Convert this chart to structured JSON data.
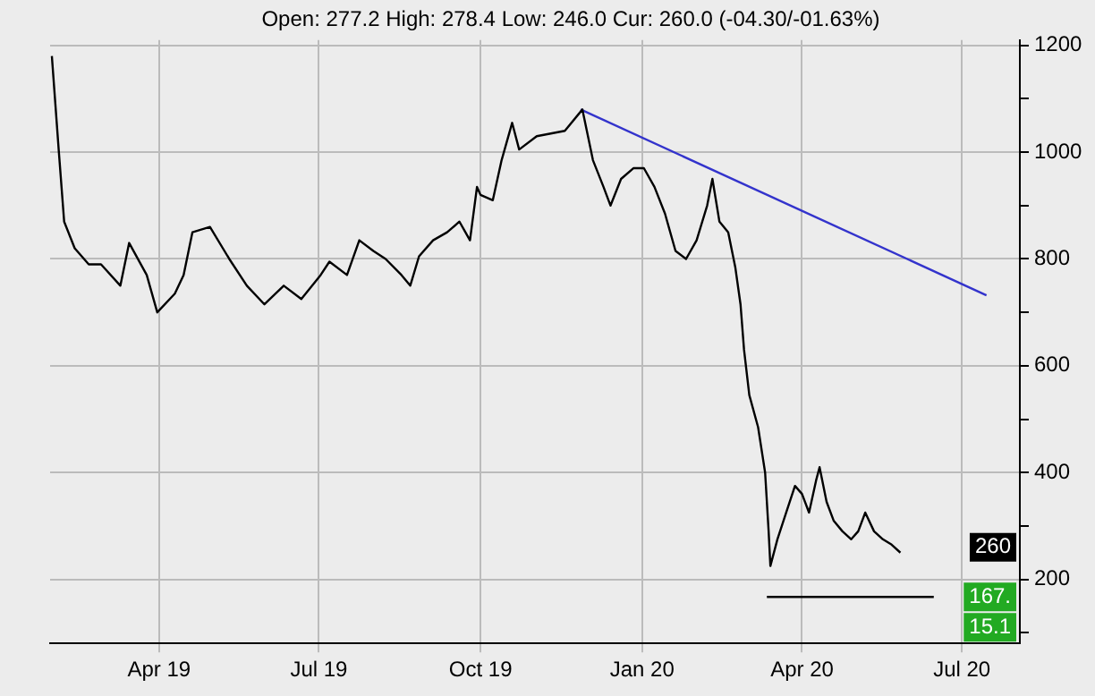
{
  "chart_data": {
    "type": "line",
    "subtitle": "Open: 277.2 High: 278.4 Low: 246.0 Cur: 260.0 (-04.30/-01.63%)",
    "series": [
      {
        "color": "#000000",
        "x": [
          "2019-01-30",
          "2019-02-03",
          "2019-02-06",
          "2019-02-12",
          "2019-02-20",
          "2019-02-27",
          "2019-03-10",
          "2019-03-15",
          "2019-03-25",
          "2019-03-31",
          "2019-04-10",
          "2019-04-15",
          "2019-04-20",
          "2019-04-30",
          "2019-05-11",
          "2019-05-21",
          "2019-05-31",
          "2019-06-11",
          "2019-06-21",
          "2019-07-02",
          "2019-07-07",
          "2019-07-17",
          "2019-07-24",
          "2019-08-01",
          "2019-08-08",
          "2019-08-17",
          "2019-08-22",
          "2019-08-27",
          "2019-09-04",
          "2019-09-12",
          "2019-09-19",
          "2019-09-25",
          "2019-09-29",
          "2019-10-01",
          "2019-10-08",
          "2019-10-13",
          "2019-10-19",
          "2019-10-23",
          "2019-11-02",
          "2019-11-10",
          "2019-11-18",
          "2019-11-28",
          "2019-12-04",
          "2019-12-10",
          "2019-12-14",
          "2019-12-20",
          "2019-12-27",
          "2020-01-02",
          "2020-01-08",
          "2020-01-14",
          "2020-01-20",
          "2020-01-26",
          "2020-02-01",
          "2020-02-07",
          "2020-02-10",
          "2020-02-14",
          "2020-02-19",
          "2020-02-23",
          "2020-02-26",
          "2020-02-28",
          "2020-03-02",
          "2020-03-07",
          "2020-03-11",
          "2020-03-13",
          "2020-03-14",
          "2020-03-18",
          "2020-03-23",
          "2020-03-28",
          "2020-04-01",
          "2020-04-05",
          "2020-04-09",
          "2020-04-11",
          "2020-04-15",
          "2020-04-19",
          "2020-04-24",
          "2020-04-29",
          "2020-05-03",
          "2020-05-07",
          "2020-05-12",
          "2020-05-17",
          "2020-05-22",
          "2020-05-27"
        ],
        "values": [
          1180,
          1000,
          870,
          820,
          790,
          790,
          750,
          830,
          770,
          700,
          735,
          770,
          850,
          860,
          800,
          750,
          715,
          750,
          725,
          770,
          795,
          770,
          835,
          815,
          800,
          770,
          750,
          805,
          835,
          850,
          870,
          835,
          935,
          920,
          910,
          985,
          1055,
          1005,
          1030,
          1035,
          1040,
          1080,
          985,
          935,
          900,
          950,
          970,
          970,
          935,
          885,
          815,
          800,
          835,
          900,
          950,
          870,
          850,
          785,
          715,
          630,
          545,
          485,
          400,
          290,
          225,
          275,
          325,
          375,
          360,
          325,
          385,
          410,
          345,
          310,
          290,
          275,
          290,
          325,
          290,
          275,
          265,
          250
        ]
      },
      {
        "color": "#3333cc",
        "x": [
          "2019-11-27",
          "2020-07-15"
        ],
        "values": [
          1080,
          732
        ]
      },
      {
        "color": "#000000",
        "x": [
          "2020-03-12",
          "2020-06-15"
        ],
        "values": [
          167,
          167
        ]
      }
    ],
    "xlim": [
      "2019-01-29",
      "2020-08-03"
    ],
    "xticks": [
      {
        "value": "2019-04-01",
        "label": "Apr 19"
      },
      {
        "value": "2019-07-01",
        "label": "Jul 19"
      },
      {
        "value": "2019-10-01",
        "label": "Oct 19"
      },
      {
        "value": "2020-01-01",
        "label": "Jan 20"
      },
      {
        "value": "2020-04-01",
        "label": "Apr 20"
      },
      {
        "value": "2020-07-01",
        "label": "Jul 20"
      }
    ],
    "ylim": [
      80,
      1210
    ],
    "yticks": [
      {
        "value": 100,
        "label": null
      },
      200,
      {
        "value": 300,
        "label": null
      },
      400,
      {
        "value": 500,
        "label": null
      },
      600,
      {
        "value": 700,
        "label": null
      },
      800,
      {
        "value": 900,
        "label": null
      },
      1000,
      {
        "value": 1100,
        "label": null
      },
      1200
    ],
    "annotations": [
      {
        "text": "260",
        "y": 260
      },
      {
        "text": "167.",
        "y": 167
      },
      "15.1"
    ],
    "grid": true,
    "legend": false,
    "marker": "none",
    "line_style": "solid"
  }
}
